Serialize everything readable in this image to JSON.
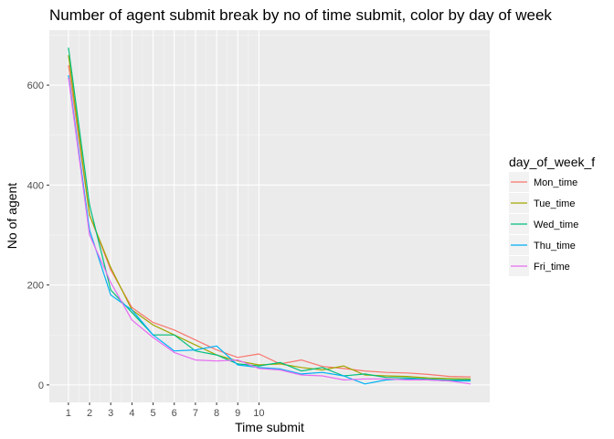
{
  "chart_data": {
    "type": "line",
    "title": "Number of agent submit break by no of time submit, color by day of week",
    "xlabel": "Time submit",
    "ylabel": "No of agent",
    "x_tick_labels": [
      "1",
      "2",
      "3",
      "4",
      "5",
      "6",
      "7",
      "8",
      "9",
      "10"
    ],
    "y_tick_labels": [
      "0",
      "200",
      "400",
      "600"
    ],
    "y_ticks": [
      0,
      200,
      400,
      600
    ],
    "xlim": [
      0.1,
      20.9
    ],
    "ylim": [
      -35,
      710
    ],
    "grid": true,
    "legend": {
      "title": "day_of_week_f",
      "position": "right"
    },
    "x": [
      1,
      2,
      3,
      4,
      5,
      6,
      7,
      8,
      9,
      10,
      11,
      12,
      13,
      14,
      15,
      16,
      17,
      18,
      19,
      20
    ],
    "series": [
      {
        "name": "Mon_time",
        "color": "#F8766D",
        "values": [
          640,
          340,
          230,
          155,
          125,
          110,
          90,
          70,
          55,
          62,
          42,
          50,
          37,
          33,
          28,
          25,
          24,
          21,
          17,
          16
        ]
      },
      {
        "name": "Tue_time",
        "color": "#A3A500",
        "values": [
          660,
          340,
          235,
          150,
          120,
          100,
          80,
          60,
          48,
          40,
          42,
          35,
          30,
          38,
          20,
          18,
          17,
          14,
          13,
          12
        ]
      },
      {
        "name": "Wed_time",
        "color": "#00BF7D",
        "values": [
          675,
          360,
          190,
          145,
          100,
          100,
          68,
          60,
          42,
          38,
          45,
          28,
          35,
          18,
          22,
          15,
          14,
          12,
          10,
          10
        ]
      },
      {
        "name": "Thu_time",
        "color": "#00B0F6",
        "values": [
          620,
          310,
          180,
          150,
          100,
          68,
          70,
          78,
          40,
          35,
          32,
          22,
          25,
          18,
          2,
          10,
          12,
          10,
          8,
          8
        ]
      },
      {
        "name": "Fri_time",
        "color": "#E76BF3",
        "values": [
          615,
          300,
          205,
          130,
          95,
          65,
          50,
          48,
          50,
          33,
          30,
          20,
          18,
          10,
          12,
          12,
          10,
          10,
          8,
          2
        ]
      }
    ]
  }
}
